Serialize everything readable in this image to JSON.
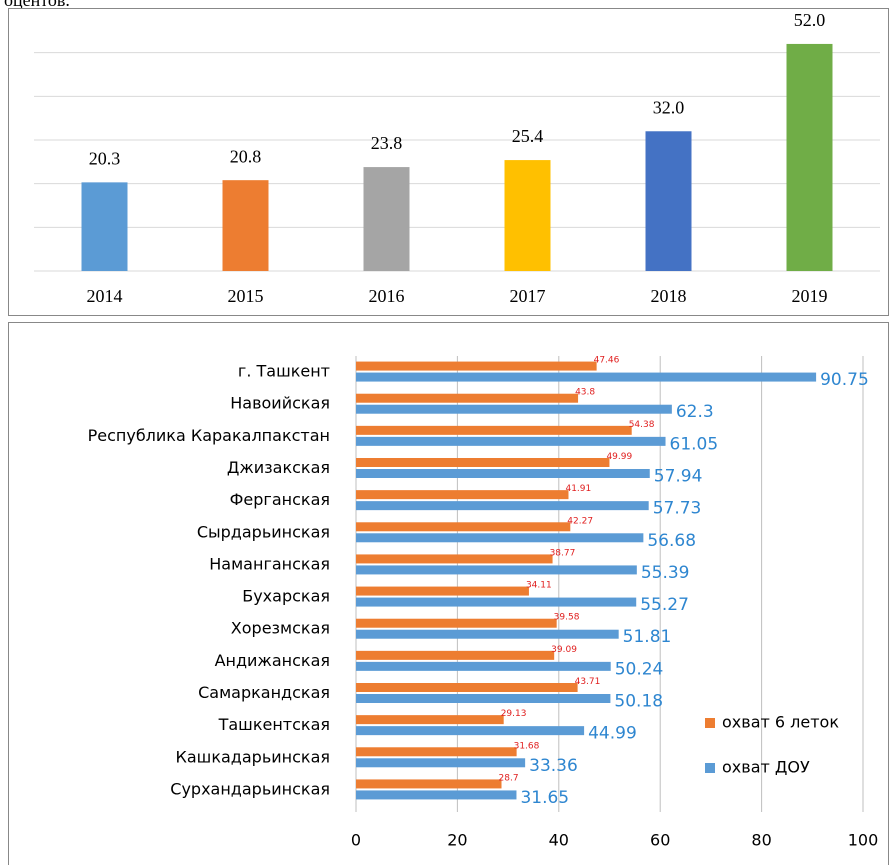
{
  "page_text": "оцентов.",
  "chart_data": [
    {
      "type": "bar",
      "categories": [
        "2014",
        "2015",
        "2016",
        "2017",
        "2018",
        "2019"
      ],
      "values": [
        20.3,
        20.8,
        23.8,
        25.4,
        32,
        52
      ],
      "value_labels": [
        "20.3",
        "20.8",
        "23.8",
        "25.4",
        "32.0",
        "52.0"
      ],
      "colors": [
        "#5b9bd5",
        "#ed7d31",
        "#a5a5a5",
        "#ffc000",
        "#4472c4",
        "#70ad47"
      ],
      "ylim": [
        0,
        60
      ],
      "yticks": [
        0,
        10,
        20,
        30,
        40,
        50
      ],
      "grid": true
    },
    {
      "type": "barh",
      "categories": [
        "г. Ташкент",
        "Навоийская",
        "Республика Каракалпакстан",
        "Джизакская",
        "Ферганская",
        "Сырдарьинская",
        "Наманганская",
        "Бухарская",
        "Хорезмская",
        "Андижанская",
        "Самаркандская",
        "Ташкентская",
        "Кашкадарьинская",
        "Сурхандарьинская"
      ],
      "series": [
        {
          "name": "охват 6 леток",
          "color": "#ed7d31",
          "label_color": "#e02020",
          "values": [
            47.46,
            43.8,
            54.38,
            49.99,
            41.91,
            42.27,
            38.77,
            34.11,
            39.58,
            39.09,
            43.71,
            29.13,
            31.68,
            28.7
          ]
        },
        {
          "name": "охват ДОУ",
          "color": "#5b9bd5",
          "label_color": "#2e86d0",
          "values": [
            90.75,
            62.3,
            61.05,
            57.94,
            57.73,
            56.68,
            55.39,
            55.27,
            51.81,
            50.24,
            50.18,
            44.99,
            33.36,
            31.65
          ]
        }
      ],
      "xlim": [
        0,
        100
      ],
      "xticks": [
        0,
        20,
        40,
        60,
        80,
        100
      ],
      "grid": true,
      "legend": "lower right"
    }
  ]
}
